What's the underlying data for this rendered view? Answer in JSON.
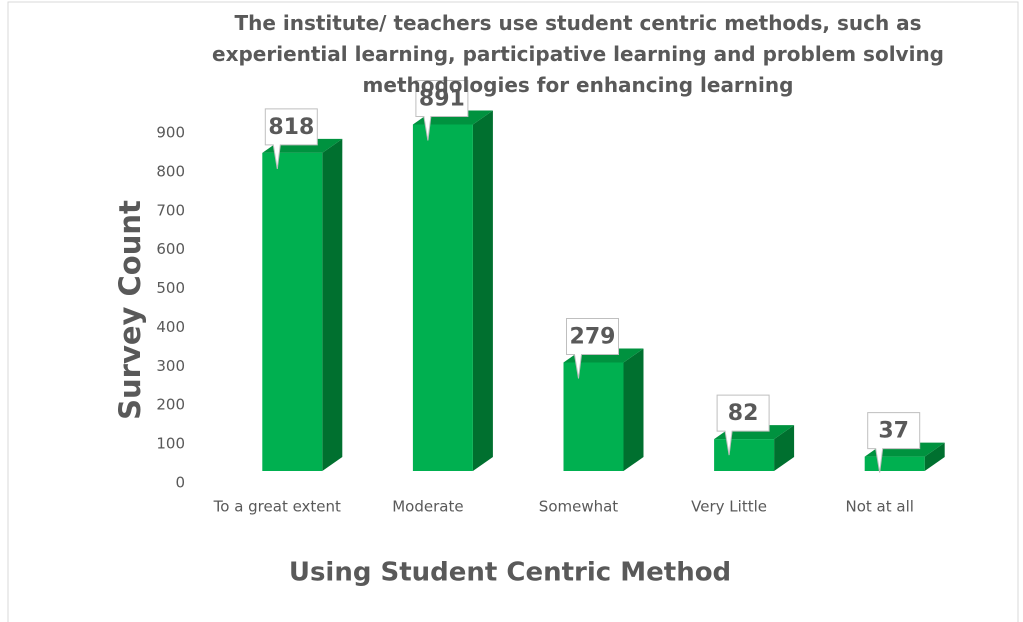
{
  "chart_data": {
    "type": "bar3d",
    "title": "The institute/ teachers use student centric methods, such as experiential learning, participative learning and problem solving methodologies for enhancing learning",
    "x_label": "Using Student Centric Method",
    "y_label": "Survey Count",
    "categories": [
      "To a great extent",
      "Moderate",
      "Somewhat",
      "Very Little",
      "Not at all"
    ],
    "values": [
      818,
      891,
      279,
      82,
      37
    ],
    "color": "#00b050",
    "ylim": [
      0,
      900
    ],
    "yticks": [
      0,
      100,
      200,
      300,
      400,
      500,
      600,
      700,
      800,
      900
    ],
    "grid": false
  }
}
